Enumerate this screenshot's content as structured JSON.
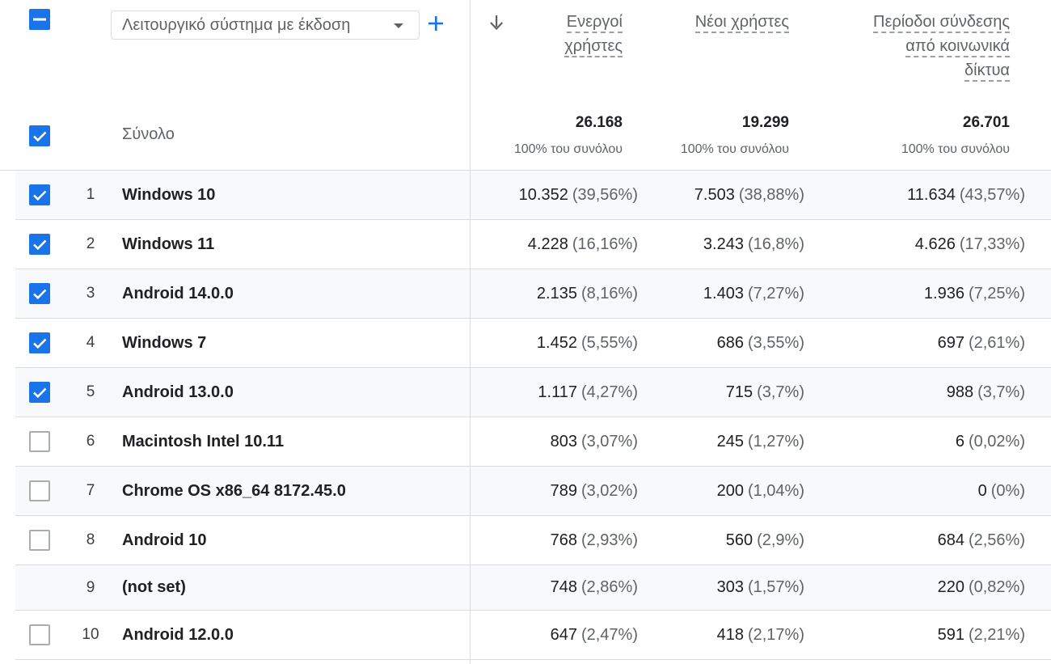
{
  "dimension_selector": {
    "label": "Λειτουργικό σύστημα με έκδοση"
  },
  "metrics": [
    {
      "header_lines": [
        "Ενεργοί",
        "χρήστες"
      ],
      "sorted": true,
      "total": "26.168",
      "total_sub": "100% του συνόλου"
    },
    {
      "header_lines": [
        "Νέοι χρήστες"
      ],
      "sorted": false,
      "total": "19.299",
      "total_sub": "100% του συνόλου"
    },
    {
      "header_lines": [
        "Περίοδοι σύνδεσης",
        "από κοινωνικά",
        "δίκτυα"
      ],
      "sorted": false,
      "total": "26.701",
      "total_sub": "100% του συνόλου"
    }
  ],
  "total_label": "Σύνολο",
  "rows": [
    {
      "index": "1",
      "name": "Windows 10",
      "checkbox": "checked",
      "values": [
        [
          "10.352",
          "(39,56%)"
        ],
        [
          "7.503",
          "(38,88%)"
        ],
        [
          "11.634",
          "(43,57%)"
        ]
      ]
    },
    {
      "index": "2",
      "name": "Windows 11",
      "checkbox": "checked",
      "values": [
        [
          "4.228",
          "(16,16%)"
        ],
        [
          "3.243",
          "(16,8%)"
        ],
        [
          "4.626",
          "(17,33%)"
        ]
      ]
    },
    {
      "index": "3",
      "name": "Android 14.0.0",
      "checkbox": "checked",
      "values": [
        [
          "2.135",
          "(8,16%)"
        ],
        [
          "1.403",
          "(7,27%)"
        ],
        [
          "1.936",
          "(7,25%)"
        ]
      ]
    },
    {
      "index": "4",
      "name": "Windows 7",
      "checkbox": "checked",
      "values": [
        [
          "1.452",
          "(5,55%)"
        ],
        [
          "686",
          "(3,55%)"
        ],
        [
          "697",
          "(2,61%)"
        ]
      ]
    },
    {
      "index": "5",
      "name": "Android 13.0.0",
      "checkbox": "checked",
      "values": [
        [
          "1.117",
          "(4,27%)"
        ],
        [
          "715",
          "(3,7%)"
        ],
        [
          "988",
          "(3,7%)"
        ]
      ]
    },
    {
      "index": "6",
      "name": "Macintosh Intel 10.11",
      "checkbox": "unchecked",
      "values": [
        [
          "803",
          "(3,07%)"
        ],
        [
          "245",
          "(1,27%)"
        ],
        [
          "6",
          "(0,02%)"
        ]
      ]
    },
    {
      "index": "7",
      "name": "Chrome OS x86_64 8172.45.0",
      "checkbox": "unchecked",
      "values": [
        [
          "789",
          "(3,02%)"
        ],
        [
          "200",
          "(1,04%)"
        ],
        [
          "0",
          "(0%)"
        ]
      ]
    },
    {
      "index": "8",
      "name": "Android 10",
      "checkbox": "unchecked",
      "values": [
        [
          "768",
          "(2,93%)"
        ],
        [
          "560",
          "(2,9%)"
        ],
        [
          "684",
          "(2,56%)"
        ]
      ]
    },
    {
      "index": "9",
      "name": "(not set)",
      "checkbox": "none",
      "values": [
        [
          "748",
          "(2,86%)"
        ],
        [
          "303",
          "(1,57%)"
        ],
        [
          "220",
          "(0,82%)"
        ]
      ]
    },
    {
      "index": "10",
      "name": "Android 12.0.0",
      "checkbox": "unchecked",
      "values": [
        [
          "647",
          "(2,47%)"
        ],
        [
          "418",
          "(2,17%)"
        ],
        [
          "591",
          "(2,21%)"
        ]
      ]
    }
  ],
  "colors": {
    "accent": "#1a73e8",
    "row_shade": "#f8f9fa",
    "divider": "#dadce0"
  }
}
